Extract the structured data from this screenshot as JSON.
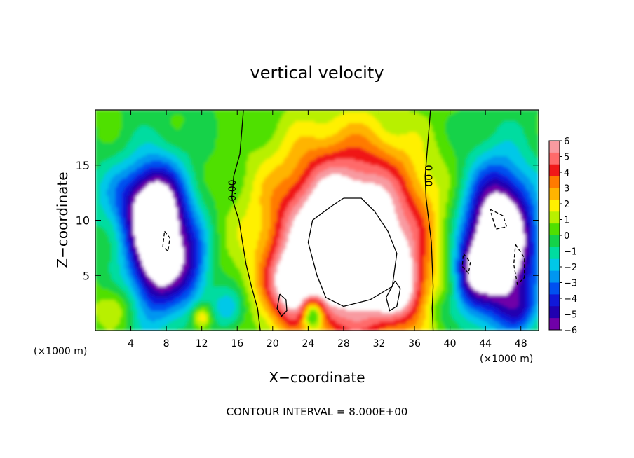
{
  "chart_data": {
    "type": "heatmap",
    "title": "vertical velocity",
    "xlabel": "X−coordinate",
    "ylabel": "Z−coordinate",
    "x_unit_left": "(×1000 m)",
    "x_unit_right": "(×1000 m)",
    "footer": "CONTOUR INTERVAL = 8.000E+00",
    "xlim": [
      0,
      50
    ],
    "ylim": [
      0,
      20
    ],
    "x_ticks": [
      "4",
      "8",
      "12",
      "16",
      "20",
      "24",
      "28",
      "32",
      "36",
      "40",
      "44",
      "48"
    ],
    "y_ticks": [
      "5",
      "10",
      "15"
    ],
    "colorbar": {
      "min": -6,
      "max": 6,
      "labels": [
        "6",
        "5",
        "4",
        "3",
        "2",
        "1",
        "0",
        "−1",
        "−2",
        "−3",
        "−4",
        "−5",
        "−6"
      ],
      "colors": [
        "#f89aa0",
        "#ff6a6a",
        "#f01818",
        "#ff7a00",
        "#ffb400",
        "#fff000",
        "#b8f000",
        "#50e000",
        "#14d24a",
        "#00dca0",
        "#00c8e8",
        "#0096f0",
        "#0050f0",
        "#1018d8",
        "#2000b0",
        "#7000a8"
      ]
    },
    "contour_labels": [
      "0.00",
      "0.00"
    ],
    "annotations": []
  }
}
